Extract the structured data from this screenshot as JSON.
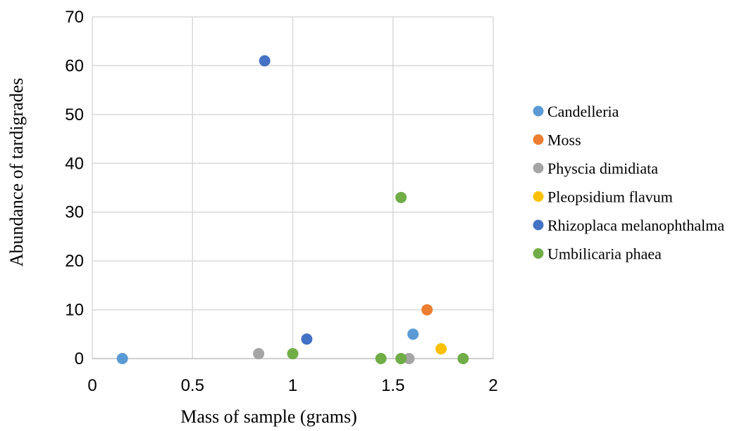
{
  "chart_data": {
    "type": "scatter",
    "title": "",
    "xlabel": "Mass of sample (grams)",
    "ylabel": "Abundance of tardigrades",
    "xlim": [
      0,
      2
    ],
    "ylim": [
      0,
      70
    ],
    "x_ticks": [
      0,
      0.5,
      1,
      1.5,
      2
    ],
    "x_tick_labels": [
      "0",
      "0.5",
      "1",
      "1.5",
      "2"
    ],
    "y_ticks": [
      0,
      10,
      20,
      30,
      40,
      50,
      60,
      70
    ],
    "y_tick_labels": [
      "0",
      "10",
      "20",
      "30",
      "40",
      "50",
      "60",
      "70"
    ],
    "grid": "vertical and horizontal major gridlines",
    "legend_position": "right",
    "series": [
      {
        "name": "Candelleria",
        "color": "#5B9BD5",
        "points": [
          {
            "x": 0.15,
            "y": 0
          },
          {
            "x": 1.6,
            "y": 5
          }
        ]
      },
      {
        "name": "Moss",
        "color": "#ED7D31",
        "points": [
          {
            "x": 1.67,
            "y": 10
          }
        ]
      },
      {
        "name": "Physcia dimidiata",
        "color": "#A5A5A5",
        "points": [
          {
            "x": 0.83,
            "y": 1
          },
          {
            "x": 1.58,
            "y": 0
          }
        ]
      },
      {
        "name": "Pleopsidium flavum",
        "color": "#FFC000",
        "points": [
          {
            "x": 1.74,
            "y": 2
          }
        ]
      },
      {
        "name": "Rhizoplaca melanophthalma",
        "color": "#4472C4",
        "points": [
          {
            "x": 0.86,
            "y": 61
          },
          {
            "x": 1.07,
            "y": 4
          }
        ]
      },
      {
        "name": "Umbilicaria phaea",
        "color": "#70AD47",
        "points": [
          {
            "x": 1.0,
            "y": 1
          },
          {
            "x": 1.54,
            "y": 33
          },
          {
            "x": 1.44,
            "y": 0
          },
          {
            "x": 1.54,
            "y": 0
          },
          {
            "x": 1.85,
            "y": 0
          }
        ]
      }
    ]
  }
}
